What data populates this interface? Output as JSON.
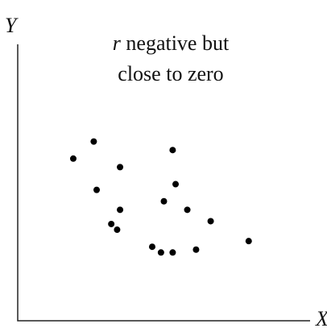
{
  "chart_data": {
    "type": "scatter",
    "title_variable": "r",
    "title": [
      "negative but",
      "close to zero"
    ],
    "x_label": "X",
    "y_label": "Y",
    "x": [
      1.9,
      2.6,
      3.5,
      2.7,
      3.5,
      3.2,
      3.4,
      5.3,
      5.4,
      5.0,
      5.8,
      6.6,
      4.6,
      4.9,
      5.3,
      6.1,
      7.9
    ],
    "y": [
      5.7,
      6.3,
      5.4,
      4.6,
      3.9,
      3.4,
      3.2,
      6.0,
      4.8,
      4.2,
      3.9,
      3.5,
      2.6,
      2.4,
      2.4,
      2.5,
      2.8
    ],
    "color": "#000000",
    "xlim": [
      0,
      10
    ],
    "ylim": [
      0,
      10
    ]
  }
}
